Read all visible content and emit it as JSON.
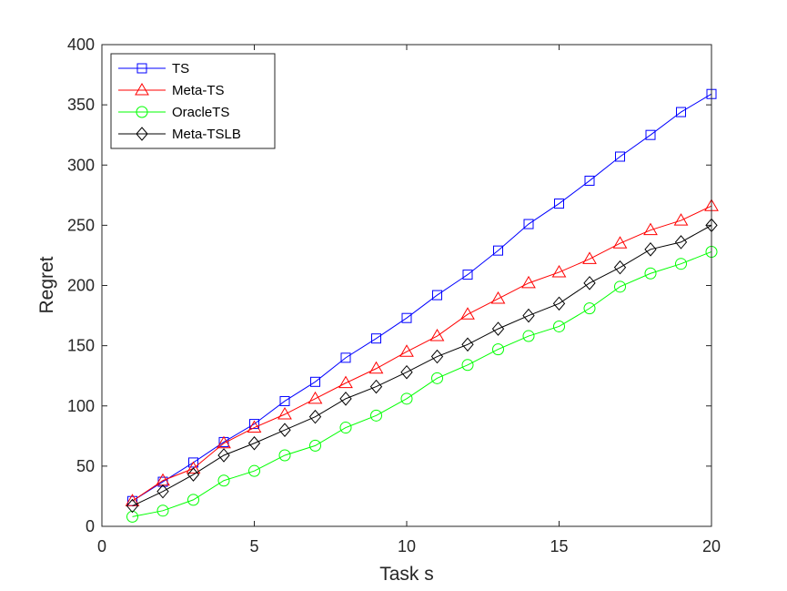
{
  "chart_data": {
    "type": "line",
    "xlabel": "Task s",
    "ylabel": "Regret",
    "xlim": [
      0,
      20
    ],
    "ylim": [
      0,
      400
    ],
    "xticks": [
      0,
      5,
      10,
      15,
      20
    ],
    "yticks": [
      0,
      50,
      100,
      150,
      200,
      250,
      300,
      350,
      400
    ],
    "grid": false,
    "legend_position": "top-left",
    "x": [
      1,
      2,
      3,
      4,
      5,
      6,
      7,
      8,
      9,
      10,
      11,
      12,
      13,
      14,
      15,
      16,
      17,
      18,
      19,
      20
    ],
    "series": [
      {
        "name": "TS",
        "color": "#0000ff",
        "marker": "square",
        "values": [
          21,
          37,
          53,
          70,
          85,
          104,
          120,
          140,
          156,
          173,
          192,
          209,
          229,
          251,
          268,
          287,
          307,
          325,
          344,
          359
        ]
      },
      {
        "name": "Meta-TS",
        "color": "#ff0000",
        "marker": "triangle",
        "values": [
          21,
          38,
          48,
          69,
          82,
          93,
          106,
          119,
          131,
          145,
          158,
          176,
          189,
          202,
          211,
          222,
          235,
          246,
          254,
          266
        ]
      },
      {
        "name": "OracleTS",
        "color": "#00ff00",
        "marker": "circle",
        "values": [
          8,
          13,
          22,
          38,
          46,
          59,
          67,
          82,
          92,
          106,
          123,
          134,
          147,
          158,
          166,
          181,
          199,
          210,
          218,
          228
        ]
      },
      {
        "name": "Meta-TSLB",
        "color": "#000000",
        "marker": "diamond",
        "values": [
          17,
          29,
          43,
          59,
          69,
          80,
          91,
          106,
          116,
          128,
          141,
          151,
          164,
          175,
          185,
          202,
          215,
          230,
          236,
          250
        ]
      }
    ]
  }
}
